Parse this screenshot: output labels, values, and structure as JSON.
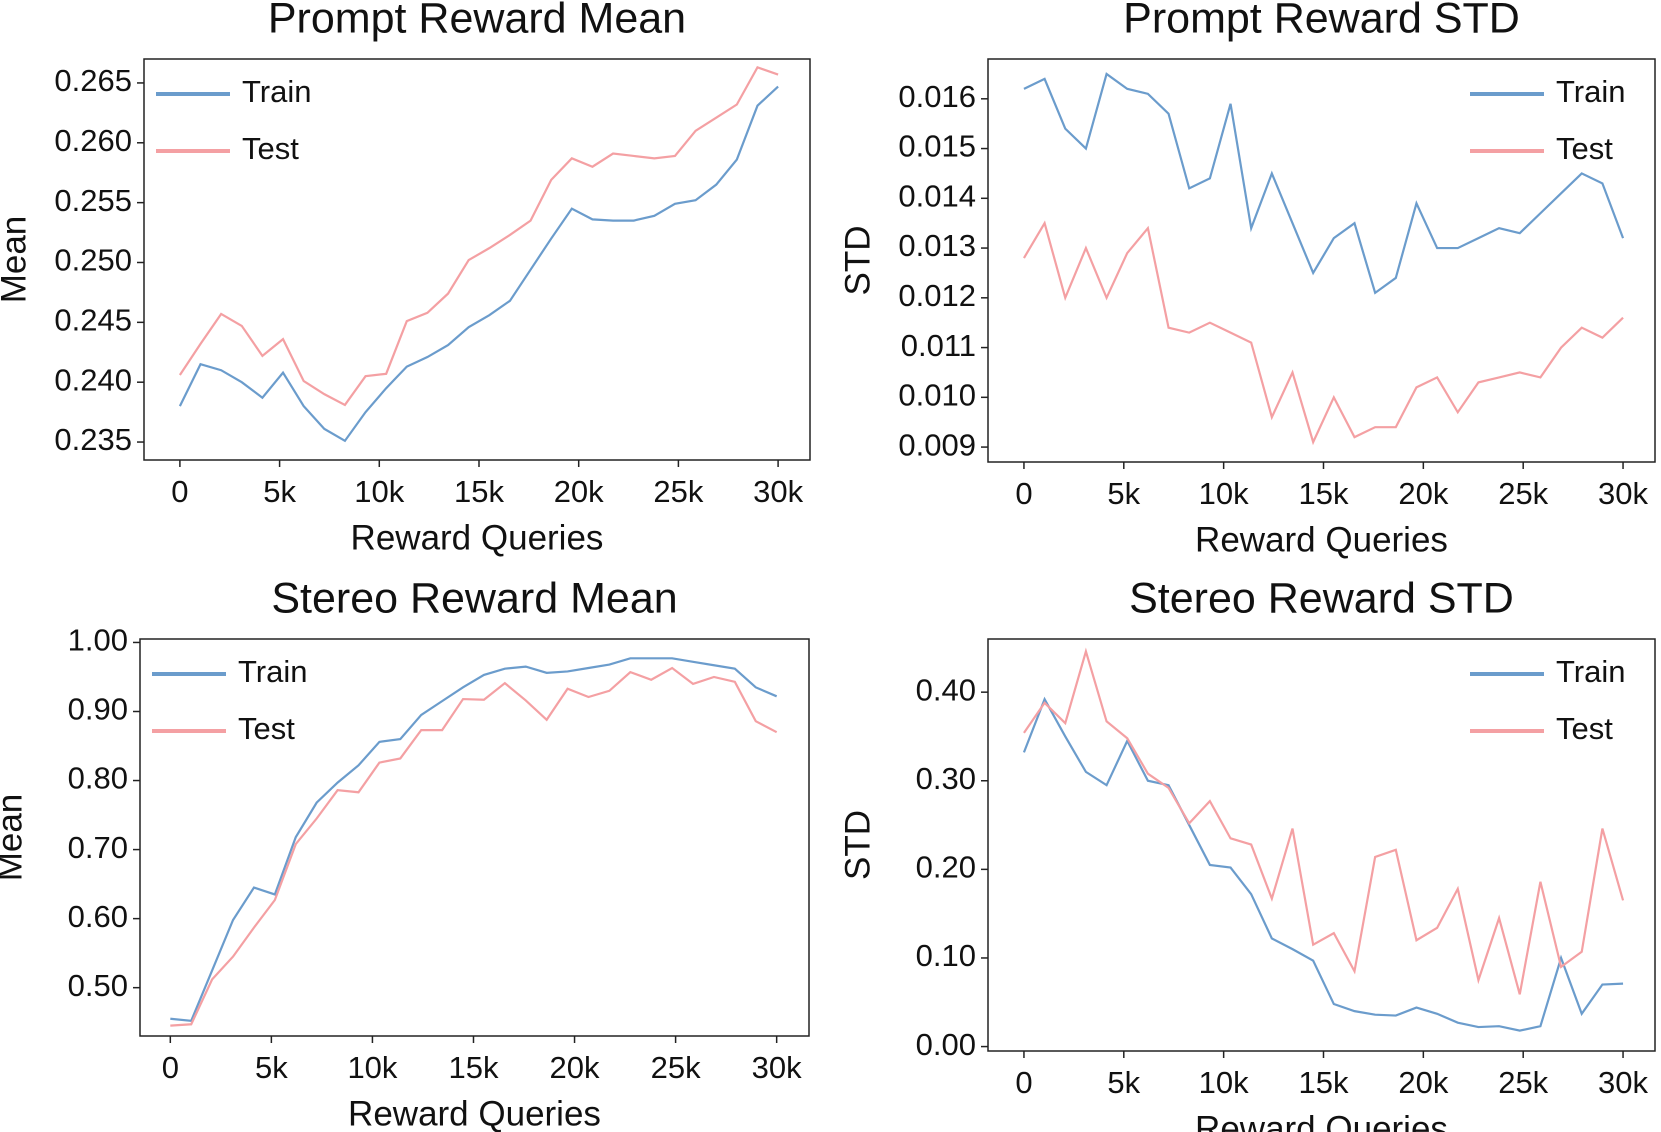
{
  "chart_data": [
    {
      "type": "line",
      "title": "Prompt Reward Mean",
      "xlabel": "Reward Queries",
      "ylabel": "Mean",
      "legend": "upper left",
      "x": [
        0,
        1034,
        2069,
        3103,
        4138,
        5172,
        6207,
        7241,
        8276,
        9310,
        10345,
        11379,
        12414,
        13448,
        14483,
        15517,
        16552,
        17586,
        18621,
        19655,
        20690,
        21724,
        22759,
        23793,
        24828,
        25862,
        26897,
        27931,
        28966,
        30000
      ],
      "xlim": [
        -1800,
        31600
      ],
      "ylim": [
        0.2335,
        0.267
      ],
      "xticks": [
        0,
        {
          "value": 5000,
          "label": "5k"
        },
        {
          "value": 10000,
          "label": "10k"
        },
        {
          "value": 15000,
          "label": "15k"
        },
        {
          "value": 20000,
          "label": "20k"
        },
        {
          "value": 25000,
          "label": "25k"
        },
        {
          "value": 30000,
          "label": "30k"
        }
      ],
      "yticks": [
        0.235,
        {
          "value": 0.24,
          "label": "0.240"
        },
        0.245,
        {
          "value": 0.25,
          "label": "0.250"
        },
        0.255,
        {
          "value": 0.26,
          "label": "0.260"
        },
        0.265
      ],
      "series": [
        {
          "name": "Train",
          "color": "#6b9ccc",
          "values": [
            0.238,
            0.2415,
            0.241,
            0.24,
            0.2387,
            0.2408,
            0.238,
            0.2361,
            0.2351,
            0.2375,
            0.2395,
            0.2413,
            0.2421,
            0.2431,
            0.2446,
            0.2456,
            0.2468,
            0.2494,
            0.252,
            0.2545,
            0.2536,
            0.2535,
            0.2535,
            0.2539,
            0.2549,
            0.2552,
            0.2565,
            0.2586,
            0.2631,
            0.2647
          ]
        },
        {
          "name": "Test",
          "color": "#f4a0a3",
          "values": [
            0.2406,
            0.2432,
            0.2457,
            0.2447,
            0.2422,
            0.2436,
            0.2401,
            0.239,
            0.2381,
            0.2405,
            0.2407,
            0.2451,
            0.2458,
            0.2474,
            0.2502,
            0.2512,
            0.2523,
            0.2535,
            0.2569,
            0.2587,
            0.258,
            0.2591,
            0.2589,
            0.2587,
            0.2589,
            0.261,
            0.2621,
            0.2632,
            0.2663,
            0.2657
          ]
        }
      ]
    },
    {
      "type": "line",
      "title": "Prompt Reward STD",
      "xlabel": "Reward Queries",
      "ylabel": "STD",
      "legend": "upper right",
      "x": [
        0,
        1034,
        2069,
        3103,
        4138,
        5172,
        6207,
        7241,
        8276,
        9310,
        10345,
        11379,
        12414,
        13448,
        14483,
        15517,
        16552,
        17586,
        18621,
        19655,
        20690,
        21724,
        22759,
        23793,
        24828,
        25862,
        26897,
        27931,
        28966,
        30000
      ],
      "xlim": [
        -1800,
        31600
      ],
      "ylim": [
        0.0087,
        0.0168
      ],
      "xticks": [
        0,
        {
          "value": 5000,
          "label": "5k"
        },
        {
          "value": 10000,
          "label": "10k"
        },
        {
          "value": 15000,
          "label": "15k"
        },
        {
          "value": 20000,
          "label": "20k"
        },
        {
          "value": 25000,
          "label": "25k"
        },
        {
          "value": 30000,
          "label": "30k"
        }
      ],
      "yticks": [
        0.009,
        {
          "value": 0.01,
          "label": "0.010"
        },
        0.011,
        0.012,
        0.013,
        0.014,
        0.015,
        0.016
      ],
      "series": [
        {
          "name": "Train",
          "color": "#6b9ccc",
          "values": [
            0.0162,
            0.0164,
            0.0154,
            0.015,
            0.0165,
            0.0162,
            0.0161,
            0.0157,
            0.0142,
            0.0144,
            0.0159,
            0.0134,
            0.0145,
            0.0135,
            0.0125,
            0.0132,
            0.0135,
            0.0121,
            0.0124,
            0.0139,
            0.013,
            0.013,
            0.0132,
            0.0134,
            0.0133,
            0.0137,
            0.0141,
            0.0145,
            0.0143,
            0.0132
          ]
        },
        {
          "name": "Test",
          "color": "#f4a0a3",
          "values": [
            0.0128,
            0.0135,
            0.012,
            0.013,
            0.012,
            0.0129,
            0.0134,
            0.0114,
            0.0113,
            0.0115,
            0.0113,
            0.0111,
            0.0096,
            0.0105,
            0.0091,
            0.01,
            0.0092,
            0.0094,
            0.0094,
            0.0102,
            0.0104,
            0.0097,
            0.0103,
            0.0104,
            0.0105,
            0.0104,
            0.011,
            0.0114,
            0.0112,
            0.0116
          ]
        }
      ]
    },
    {
      "type": "line",
      "title": "Stereo Reward Mean",
      "xlabel": "Reward Queries",
      "ylabel": "Mean",
      "legend": "upper left",
      "x": [
        0,
        1034,
        2069,
        3103,
        4138,
        5172,
        6207,
        7241,
        8276,
        9310,
        10345,
        11379,
        12414,
        13448,
        14483,
        15517,
        16552,
        17586,
        18621,
        19655,
        20690,
        21724,
        22759,
        23793,
        24828,
        25862,
        26897,
        27931,
        28966,
        30000
      ],
      "xlim": [
        -1500,
        31600
      ],
      "ylim": [
        0.43,
        1.005
      ],
      "xticks": [
        0,
        {
          "value": 5000,
          "label": "5k"
        },
        {
          "value": 10000,
          "label": "10k"
        },
        {
          "value": 15000,
          "label": "15k"
        },
        {
          "value": 20000,
          "label": "20k"
        },
        {
          "value": 25000,
          "label": "25k"
        },
        {
          "value": 30000,
          "label": "30k"
        }
      ],
      "yticks": [
        {
          "value": 0.5,
          "label": "0.50"
        },
        {
          "value": 0.6,
          "label": "0.60"
        },
        {
          "value": 0.7,
          "label": "0.70"
        },
        {
          "value": 0.8,
          "label": "0.80"
        },
        {
          "value": 0.9,
          "label": "0.90"
        },
        {
          "value": 1,
          "label": "1.00"
        }
      ],
      "series": [
        {
          "name": "Train",
          "color": "#6b9ccc",
          "values": [
            0.455,
            0.452,
            0.525,
            0.598,
            0.645,
            0.635,
            0.718,
            0.768,
            0.797,
            0.822,
            0.856,
            0.86,
            0.895,
            0.915,
            0.935,
            0.953,
            0.962,
            0.965,
            0.956,
            0.958,
            0.963,
            0.968,
            0.977,
            0.977,
            0.977,
            0.972,
            0.967,
            0.962,
            0.935,
            0.922
          ]
        },
        {
          "name": "Test",
          "color": "#f4a0a3",
          "values": [
            0.445,
            0.447,
            0.512,
            0.545,
            0.587,
            0.627,
            0.708,
            0.745,
            0.786,
            0.783,
            0.826,
            0.832,
            0.873,
            0.873,
            0.918,
            0.917,
            0.941,
            0.916,
            0.888,
            0.933,
            0.921,
            0.93,
            0.957,
            0.946,
            0.963,
            0.94,
            0.95,
            0.943,
            0.886,
            0.87
          ]
        }
      ]
    },
    {
      "type": "line",
      "title": "Stereo Reward STD",
      "xlabel": "Reward Queries",
      "ylabel": "STD",
      "legend": "upper right",
      "x": [
        0,
        1034,
        2069,
        3103,
        4138,
        5172,
        6207,
        7241,
        8276,
        9310,
        10345,
        11379,
        12414,
        13448,
        14483,
        15517,
        16552,
        17586,
        18621,
        19655,
        20690,
        21724,
        22759,
        23793,
        24828,
        25862,
        26897,
        27931,
        28966,
        30000
      ],
      "xlim": [
        -1800,
        31600
      ],
      "ylim": [
        -0.005,
        0.46
      ],
      "xticks": [
        0,
        {
          "value": 5000,
          "label": "5k"
        },
        {
          "value": 10000,
          "label": "10k"
        },
        {
          "value": 15000,
          "label": "15k"
        },
        {
          "value": 20000,
          "label": "20k"
        },
        {
          "value": 25000,
          "label": "25k"
        },
        {
          "value": 30000,
          "label": "30k"
        }
      ],
      "yticks": [
        {
          "value": 0,
          "label": "0.00"
        },
        {
          "value": 0.1,
          "label": "0.10"
        },
        {
          "value": 0.2,
          "label": "0.20"
        },
        {
          "value": 0.3,
          "label": "0.30"
        },
        {
          "value": 0.4,
          "label": "0.40"
        }
      ],
      "series": [
        {
          "name": "Train",
          "color": "#6b9ccc",
          "values": [
            0.332,
            0.392,
            0.35,
            0.31,
            0.295,
            0.345,
            0.3,
            0.295,
            0.25,
            0.205,
            0.202,
            0.172,
            0.122,
            0.11,
            0.097,
            0.048,
            0.04,
            0.036,
            0.035,
            0.044,
            0.037,
            0.027,
            0.022,
            0.023,
            0.018,
            0.023,
            0.1,
            0.037,
            0.07,
            0.071
          ]
        },
        {
          "name": "Test",
          "color": "#f4a0a3",
          "values": [
            0.354,
            0.388,
            0.365,
            0.446,
            0.367,
            0.348,
            0.308,
            0.292,
            0.252,
            0.277,
            0.235,
            0.228,
            0.167,
            0.246,
            0.115,
            0.128,
            0.085,
            0.214,
            0.222,
            0.12,
            0.134,
            0.178,
            0.075,
            0.145,
            0.059,
            0.186,
            0.09,
            0.107,
            0.246,
            0.165
          ]
        }
      ]
    }
  ]
}
